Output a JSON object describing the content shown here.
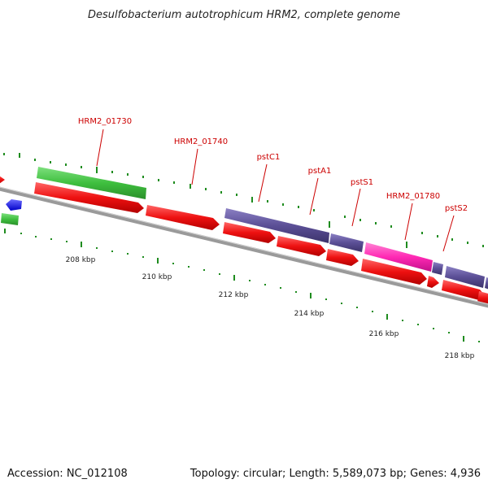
{
  "title": "Desulfobacterium autotrophicum HRM2, complete genome",
  "footer": {
    "accession": "Accession: NC_012108",
    "info": "Topology: circular; Length: 5,589,073 bp; Genes: 4,936"
  },
  "colors": {
    "backbone": "#8c8c8c",
    "forward_cds": "#3fbf3f",
    "reverse_cds": "#ee1111",
    "pst_operon": "#5b4f96",
    "highlight_gene": "#ff29b4",
    "small_marker": "#1a1aff",
    "tick": "#1f8c1f",
    "label_line": "#cc0000"
  },
  "gene_labels": [
    "HRM2_01730",
    "HRM2_01740",
    "pstC1",
    "pstA1",
    "pstS1",
    "HRM2_01780",
    "pstS2"
  ],
  "scale_labels": [
    "208 kbp",
    "210 kbp",
    "212 kbp",
    "214 kbp",
    "216 kbp",
    "218 kbp"
  ]
}
